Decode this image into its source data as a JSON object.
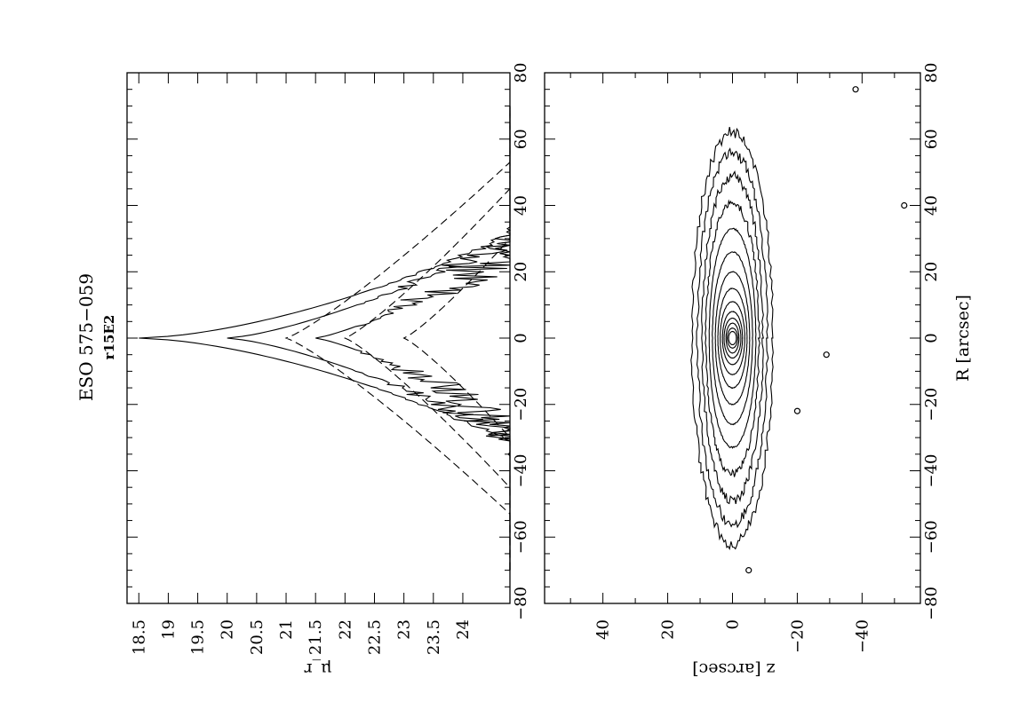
{
  "figure": {
    "title": "ESO 575−059",
    "subtitle": "r15E2"
  },
  "chart_data": [
    {
      "type": "line",
      "panel": "profiles",
      "x_tick_labels": [
        "−80",
        "−60",
        "−40",
        "−20",
        "0",
        "20",
        "40",
        "60",
        "80"
      ],
      "y_tick_labels": [
        "18.5",
        "19",
        "19.5",
        "20",
        "20.5",
        "21",
        "21.5",
        "22",
        "22.5",
        "23",
        "23.5",
        "24"
      ],
      "xlim": [
        -80,
        80
      ],
      "ylim": [
        24.8,
        18.3
      ],
      "ylabel": "μ_r",
      "y_inverted": true,
      "series": [
        {
          "style": "solid",
          "peak_x": 0,
          "peak_y": 18.5
        },
        {
          "style": "solid",
          "peak_x": 0,
          "peak_y": 20.0
        },
        {
          "style": "solid",
          "peak_x": 0,
          "peak_y": 21.5
        },
        {
          "style": "dashed",
          "peak_x": 0,
          "peak_y": 21.0
        },
        {
          "style": "dashed",
          "peak_x": 0,
          "peak_y": 22.0
        },
        {
          "style": "dashed",
          "peak_x": 0,
          "peak_y": 23.0
        }
      ]
    },
    {
      "type": "contour",
      "panel": "isophotes",
      "x_tick_labels": [
        "−80",
        "−60",
        "−40",
        "−20",
        "0",
        "20",
        "40",
        "60",
        "80"
      ],
      "y_tick_labels": [
        "40",
        "20",
        "0",
        "−20",
        "−40"
      ],
      "xlim": [
        -80,
        80
      ],
      "ylim": [
        -58,
        58
      ],
      "xlabel": "R [arcsec]",
      "ylabel": "z [arcsec]",
      "contour_semi_axes": [
        [
          2,
          1.2
        ],
        [
          3,
          1.6
        ],
        [
          4.5,
          2
        ],
        [
          6,
          2.6
        ],
        [
          8,
          3.1
        ],
        [
          11,
          3.8
        ],
        [
          15,
          4.5
        ],
        [
          20,
          5.3
        ],
        [
          26,
          6.2
        ],
        [
          33,
          7.2
        ],
        [
          41,
          8.2
        ],
        [
          49,
          9.4
        ],
        [
          56,
          10.8
        ],
        [
          62,
          12.5
        ]
      ],
      "isolated_sources": [
        [
          -70,
          -5
        ],
        [
          -22,
          -20
        ],
        [
          -5,
          -29
        ],
        [
          40,
          -53
        ],
        [
          75,
          -38
        ]
      ]
    }
  ]
}
